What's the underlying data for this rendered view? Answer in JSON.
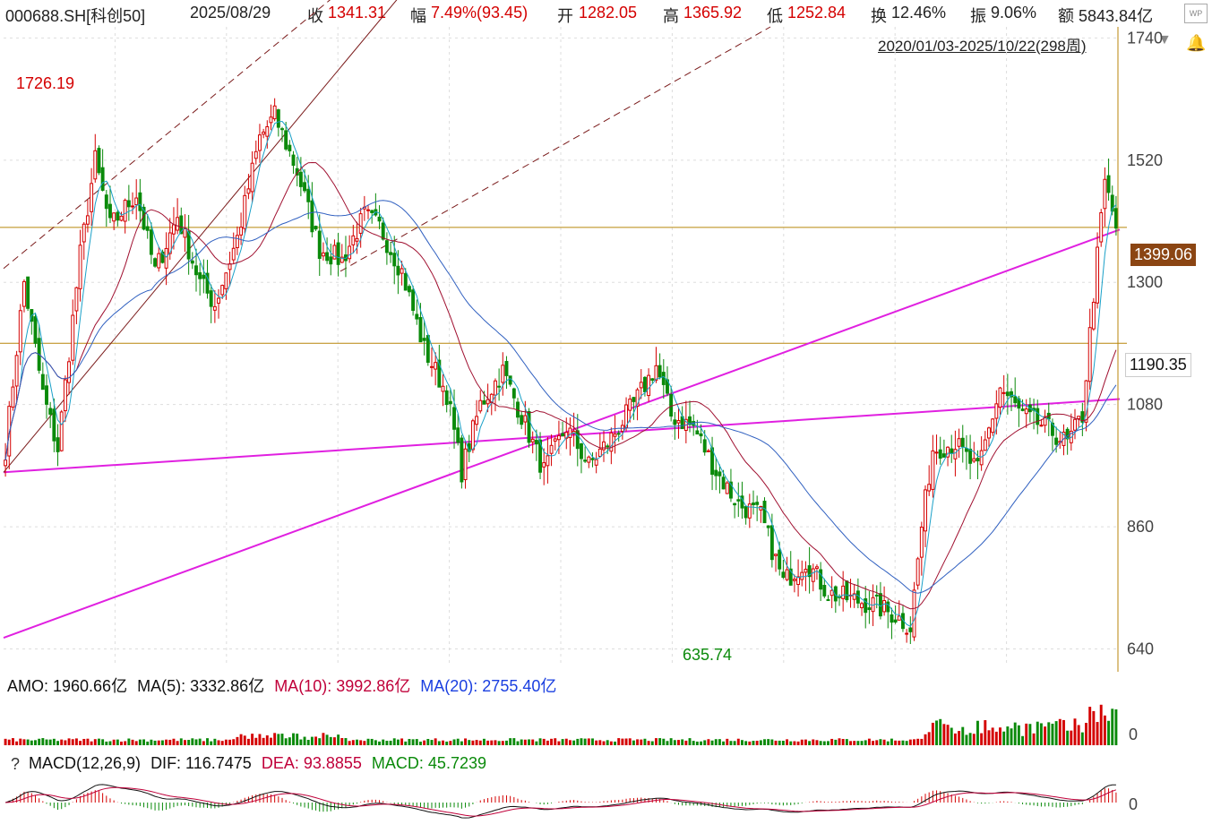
{
  "header": {
    "code": "000688.SH[科创50]",
    "date": "2025/08/29",
    "close_label": "收",
    "close": "1341.31",
    "range_label": "幅",
    "range": "7.49%(93.45)",
    "open_label": "开",
    "open": "1282.05",
    "high_label": "高",
    "high": "1365.92",
    "low_label": "低",
    "low": "1252.84",
    "turnover_label": "换",
    "turnover": "12.46%",
    "amplitude_label": "振",
    "amplitude": "9.06%",
    "amount_label": "额",
    "amount": "5843.84亿",
    "period": "2020/01/03-2025/10/22(298周)"
  },
  "icons": {
    "wp": "WP",
    "bell": "bell-icon",
    "dropdown": "triangle-down-icon",
    "help": "?"
  },
  "annotations": {
    "high_label": "1726.19",
    "low_label": "635.74",
    "tag_upper": "1399.06",
    "tag_lower": "1190.35"
  },
  "volume": {
    "amo_label": "AMO: 1960.66亿",
    "ma5_label": "MA(5): 3332.86亿",
    "ma10_label": "MA(10): 3992.86亿",
    "ma20_label": "MA(20): 2755.40亿",
    "zero": "0"
  },
  "macd": {
    "title": "MACD(12,26,9)",
    "dif_label": "DIF: 116.7475",
    "dea_label": "DEA: 93.8855",
    "macd_label": "MACD: 45.7239",
    "zero": "0"
  },
  "colors": {
    "up": "#d40000",
    "down": "#0a8a0a",
    "ma_short": "#1aa0c8",
    "ma_mid": "#a01030",
    "ma_long": "#3060c0",
    "channel": "#e020e0",
    "hline": "#b8860b"
  },
  "chart_data": {
    "type": "candlestick",
    "yticks": [
      640,
      860,
      1080,
      1300,
      1520,
      1740
    ],
    "ylim": [
      615,
      1760
    ],
    "weeks": 298,
    "anchors": [
      [
        0,
        1000
      ],
      [
        5,
        1300
      ],
      [
        10,
        1100
      ],
      [
        14,
        1000
      ],
      [
        20,
        1350
      ],
      [
        24,
        1520
      ],
      [
        28,
        1400
      ],
      [
        35,
        1460
      ],
      [
        40,
        1320
      ],
      [
        46,
        1420
      ],
      [
        52,
        1300
      ],
      [
        56,
        1260
      ],
      [
        62,
        1380
      ],
      [
        68,
        1560
      ],
      [
        72,
        1600
      ],
      [
        78,
        1500
      ],
      [
        84,
        1360
      ],
      [
        90,
        1340
      ],
      [
        96,
        1420
      ],
      [
        100,
        1400
      ],
      [
        106,
        1320
      ],
      [
        112,
        1180
      ],
      [
        118,
        1100
      ],
      [
        122,
        960
      ],
      [
        127,
        1080
      ],
      [
        133,
        1140
      ],
      [
        138,
        1060
      ],
      [
        144,
        960
      ],
      [
        150,
        1040
      ],
      [
        156,
        970
      ],
      [
        162,
        1020
      ],
      [
        168,
        1080
      ],
      [
        174,
        1150
      ],
      [
        178,
        1060
      ],
      [
        184,
        1040
      ],
      [
        190,
        960
      ],
      [
        196,
        900
      ],
      [
        202,
        880
      ],
      [
        208,
        760
      ],
      [
        214,
        800
      ],
      [
        220,
        740
      ],
      [
        226,
        730
      ],
      [
        232,
        720
      ],
      [
        238,
        700
      ],
      [
        242,
        680
      ],
      [
        245,
        860
      ],
      [
        248,
        1000
      ],
      [
        254,
        1010
      ],
      [
        260,
        960
      ],
      [
        266,
        1110
      ],
      [
        272,
        1060
      ],
      [
        278,
        1040
      ],
      [
        284,
        1010
      ],
      [
        288,
        1060
      ],
      [
        291,
        1280
      ],
      [
        294,
        1480
      ],
      [
        297,
        1400
      ]
    ],
    "highlights": {
      "max": 1726.19,
      "min": 635.74,
      "last_close": 1399.06
    }
  }
}
